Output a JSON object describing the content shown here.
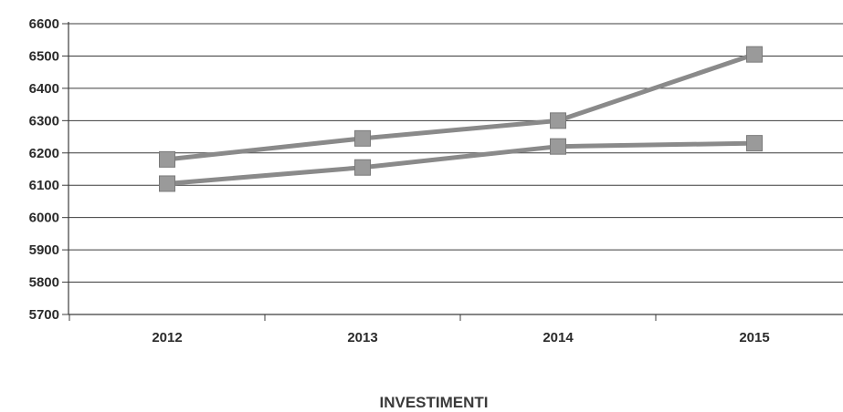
{
  "chart_data": {
    "type": "line",
    "title": "",
    "xlabel": "INVESTIMENTI",
    "ylabel": "",
    "categories": [
      "2012",
      "2013",
      "2014",
      "2015"
    ],
    "series": [
      {
        "values": [
          6180,
          6245,
          6300,
          6505
        ]
      },
      {
        "values": [
          6105,
          6155,
          6220,
          6230
        ]
      }
    ],
    "ylim": [
      5700,
      6600
    ],
    "yticks": [
      6600,
      6500,
      6400,
      6300,
      6200,
      6100,
      6000,
      5900,
      5800,
      5700
    ],
    "grid": "horizontal",
    "legend": "none",
    "colors": {
      "series_line": "#8a8a8a",
      "marker": "#9a9a9a",
      "gridline": "#3c3c3c",
      "axis": "#3c3c3c",
      "text": "#2b2b2b"
    }
  }
}
